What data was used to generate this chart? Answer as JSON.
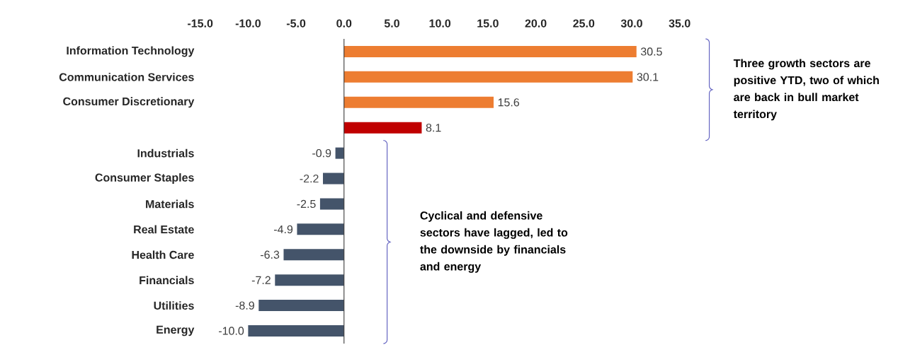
{
  "chart_data": {
    "type": "bar",
    "orientation": "horizontal",
    "categories": [
      "Information Technology",
      "Communication Services",
      "Consumer Discretionary",
      null,
      "Industrials",
      "Consumer Staples",
      "Materials",
      "Real Estate",
      "Health Care",
      "Financials",
      "Utilities",
      "Energy"
    ],
    "values": [
      30.5,
      30.1,
      15.6,
      8.1,
      -0.9,
      -2.2,
      -2.5,
      -4.9,
      -6.3,
      -7.2,
      -8.9,
      -10.0
    ],
    "colors": [
      "#ed7d31",
      "#ed7d31",
      "#ed7d31",
      "#c00000",
      "#44546a",
      "#44546a",
      "#44546a",
      "#44546a",
      "#44546a",
      "#44546a",
      "#44546a",
      "#44546a"
    ],
    "value_labels": [
      "30.5",
      "30.1",
      "15.6",
      "8.1",
      "-0.9",
      "-2.2",
      "-2.5",
      "-4.9",
      "-6.3",
      "-7.2",
      "-8.9",
      "-10.0"
    ],
    "xlim": [
      -15,
      35
    ],
    "xticks": [
      {
        "value": -15,
        "label": "-15.0"
      },
      {
        "value": -10,
        "label": "-10.0"
      },
      {
        "value": -5,
        "label": "-5.0"
      },
      {
        "value": 0,
        "label": "0.0"
      },
      {
        "value": 5,
        "label": "5.0"
      },
      {
        "value": 10,
        "label": "10.0"
      },
      {
        "value": 15,
        "label": "15.0"
      },
      {
        "value": 20,
        "label": "20.0"
      },
      {
        "value": 25,
        "label": "25.0"
      },
      {
        "value": 30,
        "label": "30.0"
      },
      {
        "value": 35,
        "label": "35.0"
      }
    ],
    "annotations": [
      "Three growth sectors are positive YTD, two of which are back in bull market territory",
      "Cyclical and defensive sectors have lagged, led to the downside by financials and energy"
    ]
  }
}
